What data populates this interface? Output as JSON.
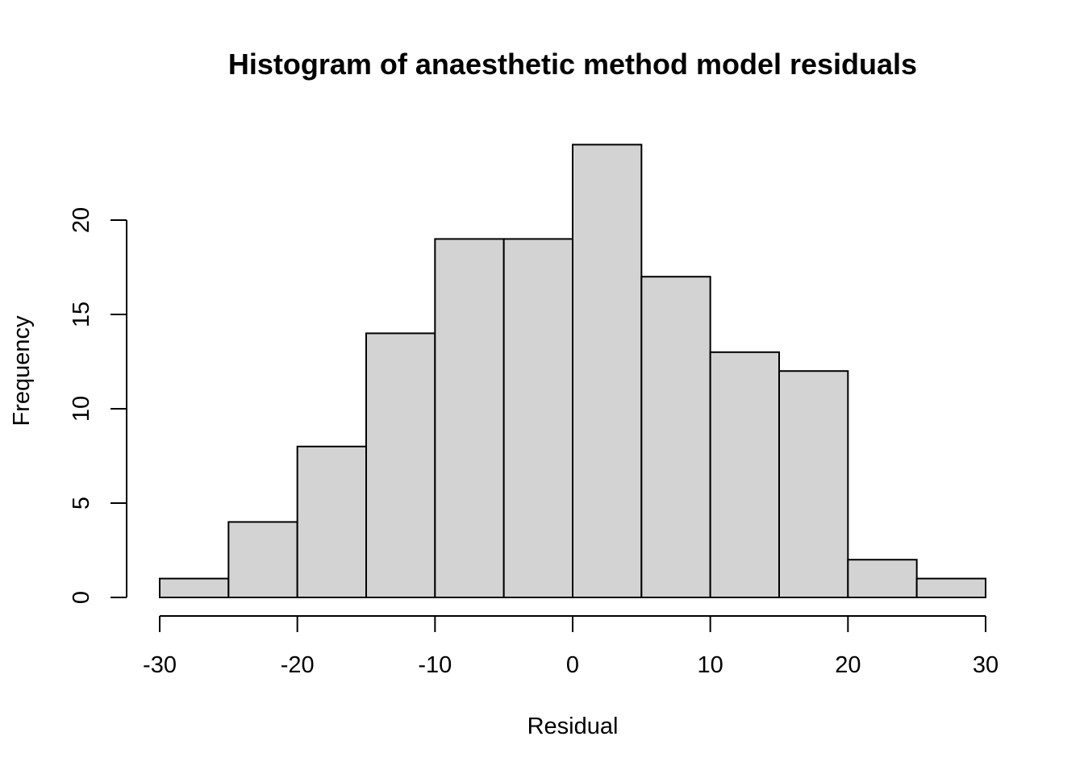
{
  "chart_data": {
    "type": "bar",
    "title": "Histogram of anaesthetic method model residuals",
    "xlabel": "Residual",
    "ylabel": "Frequency",
    "bin_edges": [
      -30,
      -25,
      -20,
      -15,
      -10,
      -5,
      0,
      5,
      10,
      15,
      20,
      25,
      30
    ],
    "values": [
      1,
      4,
      8,
      14,
      19,
      19,
      24,
      17,
      13,
      12,
      2,
      1
    ],
    "xlim": [
      -30,
      30
    ],
    "ylim": [
      0,
      24
    ],
    "x_ticks": [
      -30,
      -20,
      -10,
      0,
      10,
      20,
      30
    ],
    "y_ticks": [
      0,
      5,
      10,
      15,
      20
    ],
    "x_tick_labels": [
      "-30",
      "-20",
      "-10",
      "0",
      "10",
      "20",
      "30"
    ],
    "y_tick_labels": [
      "0",
      "5",
      "10",
      "15",
      "20"
    ],
    "bar_color": "#d3d3d3",
    "edge_color": "#000000",
    "grid": false
  }
}
